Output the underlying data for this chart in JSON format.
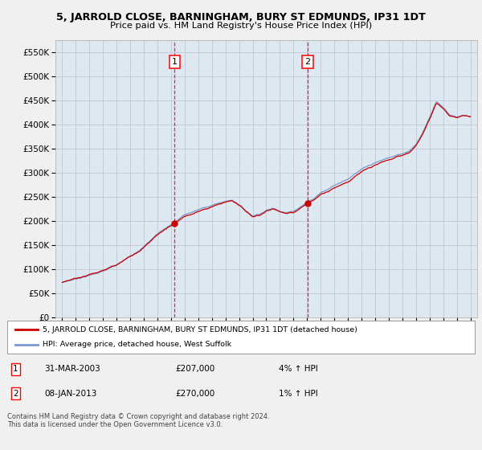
{
  "title1": "5, JARROLD CLOSE, BARNINGHAM, BURY ST EDMUNDS, IP31 1DT",
  "title2": "Price paid vs. HM Land Registry's House Price Index (HPI)",
  "legend_line1": "5, JARROLD CLOSE, BARNINGHAM, BURY ST EDMUNDS, IP31 1DT (detached house)",
  "legend_line2": "HPI: Average price, detached house, West Suffolk",
  "annotation1_date": "31-MAR-2003",
  "annotation1_price": "£207,000",
  "annotation1_hpi": "4% ↑ HPI",
  "annotation1_year": 2003.25,
  "annotation1_value": 207000,
  "annotation2_date": "08-JAN-2013",
  "annotation2_price": "£270,000",
  "annotation2_hpi": "1% ↑ HPI",
  "annotation2_year": 2013.04,
  "annotation2_value": 270000,
  "footer": "Contains HM Land Registry data © Crown copyright and database right 2024.\nThis data is licensed under the Open Government Licence v3.0.",
  "hpi_color": "#7799cc",
  "price_color": "#cc0000",
  "background_color": "#dde8f0",
  "fig_color": "#f0f0f0",
  "ylim": [
    0,
    575000
  ],
  "yticks": [
    0,
    50000,
    100000,
    150000,
    200000,
    250000,
    300000,
    350000,
    400000,
    450000,
    500000,
    550000
  ],
  "xlim_start": 1994.5,
  "xlim_end": 2025.5
}
